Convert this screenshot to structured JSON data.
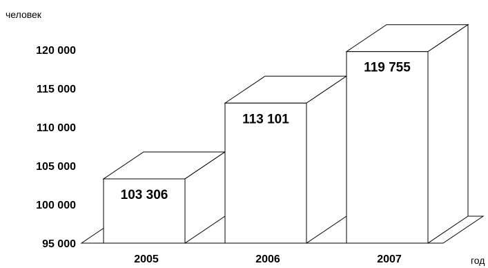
{
  "chart_data": {
    "type": "bar",
    "style": "3d-wireframe",
    "categories": [
      "2005",
      "2006",
      "2007"
    ],
    "values": [
      103306,
      113101,
      119755
    ],
    "data_labels": [
      "103 306",
      "113 101",
      "119 755"
    ],
    "ylabel": "человек",
    "xlabel": "год",
    "ylim": [
      95000,
      120000
    ],
    "yticks": [
      95000,
      100000,
      105000,
      110000,
      115000,
      120000
    ],
    "ytick_labels": [
      "95 000",
      "100 000",
      "105 000",
      "110 000",
      "115 000",
      "120 000"
    ],
    "grid": false,
    "legend": "none"
  }
}
